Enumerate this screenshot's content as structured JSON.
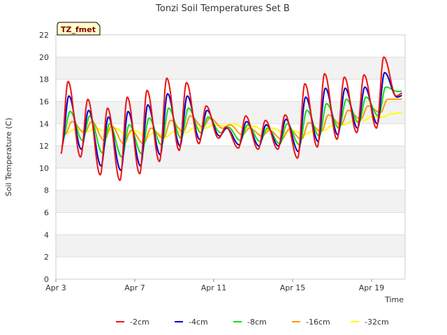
{
  "chart_data": {
    "type": "line",
    "title": "Tonzi Soil Temperatures Set B",
    "xlabel": "Time",
    "ylabel": "Soil Temperature (C)",
    "ylim": [
      0,
      22
    ],
    "xlim": [
      3,
      20.7
    ],
    "y_ticks": [
      0,
      2,
      4,
      6,
      8,
      10,
      12,
      14,
      16,
      18,
      20,
      22
    ],
    "x_ticks": [
      {
        "value": 3,
        "label": "Apr 3"
      },
      {
        "value": 7,
        "label": "Apr 7"
      },
      {
        "value": 11,
        "label": "Apr 11"
      },
      {
        "value": 15,
        "label": "Apr 15"
      },
      {
        "value": 19,
        "label": "Apr 19"
      }
    ],
    "x_unit": "day of April",
    "badge": "TZ_fmet",
    "grid": true,
    "band_color": "#f2f2f2",
    "legend_position": "bottom",
    "series": [
      {
        "name": "-2cm",
        "color": "#ee1111",
        "daily": [
          {
            "day": 3,
            "min": 11.3,
            "max": 17.8
          },
          {
            "day": 4,
            "min": 11.0,
            "max": 16.2
          },
          {
            "day": 5,
            "min": 9.4,
            "max": 15.4
          },
          {
            "day": 6,
            "min": 8.9,
            "max": 16.4
          },
          {
            "day": 7,
            "min": 9.5,
            "max": 17.0
          },
          {
            "day": 8,
            "min": 10.6,
            "max": 18.1
          },
          {
            "day": 9,
            "min": 11.6,
            "max": 17.7
          },
          {
            "day": 10,
            "min": 12.2,
            "max": 15.6
          },
          {
            "day": 11,
            "min": 12.7,
            "max": 13.7
          },
          {
            "day": 12,
            "min": 11.8,
            "max": 14.7
          },
          {
            "day": 13,
            "min": 11.7,
            "max": 14.3
          },
          {
            "day": 14,
            "min": 11.7,
            "max": 14.8
          },
          {
            "day": 15,
            "min": 10.9,
            "max": 17.6
          },
          {
            "day": 16,
            "min": 11.9,
            "max": 18.5
          },
          {
            "day": 17,
            "min": 12.6,
            "max": 18.2
          },
          {
            "day": 18,
            "min": 13.2,
            "max": 18.4
          },
          {
            "day": 19,
            "min": 13.6,
            "max": 20.0
          },
          {
            "day": 20,
            "min": 16.5,
            "max": 16.8
          }
        ]
      },
      {
        "name": "-4cm",
        "color": "#0000cc",
        "daily": [
          {
            "day": 3,
            "min": 11.9,
            "max": 16.5
          },
          {
            "day": 4,
            "min": 11.7,
            "max": 15.2
          },
          {
            "day": 5,
            "min": 10.2,
            "max": 14.6
          },
          {
            "day": 6,
            "min": 9.8,
            "max": 15.1
          },
          {
            "day": 7,
            "min": 10.2,
            "max": 15.7
          },
          {
            "day": 8,
            "min": 11.2,
            "max": 16.7
          },
          {
            "day": 9,
            "min": 12.0,
            "max": 16.5
          },
          {
            "day": 10,
            "min": 12.6,
            "max": 15.2
          },
          {
            "day": 11,
            "min": 12.9,
            "max": 13.6
          },
          {
            "day": 12,
            "min": 12.1,
            "max": 14.2
          },
          {
            "day": 13,
            "min": 12.0,
            "max": 13.9
          },
          {
            "day": 14,
            "min": 12.0,
            "max": 14.4
          },
          {
            "day": 15,
            "min": 11.5,
            "max": 16.4
          },
          {
            "day": 16,
            "min": 12.4,
            "max": 17.2
          },
          {
            "day": 17,
            "min": 13.0,
            "max": 17.2
          },
          {
            "day": 18,
            "min": 13.6,
            "max": 17.3
          },
          {
            "day": 19,
            "min": 14.0,
            "max": 18.6
          },
          {
            "day": 20,
            "min": 16.4,
            "max": 16.6
          }
        ]
      },
      {
        "name": "-8cm",
        "color": "#11dd11",
        "daily": [
          {
            "day": 3,
            "min": 12.6,
            "max": 15.1
          },
          {
            "day": 4,
            "min": 12.5,
            "max": 14.7
          },
          {
            "day": 5,
            "min": 11.4,
            "max": 14.0
          },
          {
            "day": 6,
            "min": 11.0,
            "max": 13.9
          },
          {
            "day": 7,
            "min": 11.3,
            "max": 14.5
          },
          {
            "day": 8,
            "min": 12.1,
            "max": 15.4
          },
          {
            "day": 9,
            "min": 12.7,
            "max": 15.4
          },
          {
            "day": 10,
            "min": 13.2,
            "max": 14.6
          },
          {
            "day": 11,
            "min": 13.2,
            "max": 13.7
          },
          {
            "day": 12,
            "min": 12.5,
            "max": 13.9
          },
          {
            "day": 13,
            "min": 12.4,
            "max": 13.6
          },
          {
            "day": 14,
            "min": 12.2,
            "max": 14.0
          },
          {
            "day": 15,
            "min": 12.1,
            "max": 15.2
          },
          {
            "day": 16,
            "min": 12.9,
            "max": 15.8
          },
          {
            "day": 17,
            "min": 13.6,
            "max": 16.2
          },
          {
            "day": 18,
            "min": 14.1,
            "max": 16.4
          },
          {
            "day": 19,
            "min": 14.7,
            "max": 17.3
          },
          {
            "day": 20,
            "min": 16.9,
            "max": 17.0
          }
        ]
      },
      {
        "name": "-16cm",
        "color": "#ff9900",
        "daily": [
          {
            "day": 3,
            "min": 13.0,
            "max": 14.2
          },
          {
            "day": 4,
            "min": 13.2,
            "max": 14.2
          },
          {
            "day": 5,
            "min": 12.5,
            "max": 13.8
          },
          {
            "day": 6,
            "min": 12.2,
            "max": 13.4
          },
          {
            "day": 7,
            "min": 12.2,
            "max": 13.6
          },
          {
            "day": 8,
            "min": 12.7,
            "max": 14.3
          },
          {
            "day": 9,
            "min": 13.3,
            "max": 14.7
          },
          {
            "day": 10,
            "min": 13.7,
            "max": 14.5
          },
          {
            "day": 11,
            "min": 13.6,
            "max": 13.9
          },
          {
            "day": 12,
            "min": 13.0,
            "max": 13.6
          },
          {
            "day": 13,
            "min": 12.9,
            "max": 13.4
          },
          {
            "day": 14,
            "min": 12.6,
            "max": 13.5
          },
          {
            "day": 15,
            "min": 12.6,
            "max": 14.1
          },
          {
            "day": 16,
            "min": 13.3,
            "max": 14.8
          },
          {
            "day": 17,
            "min": 13.9,
            "max": 15.2
          },
          {
            "day": 18,
            "min": 14.4,
            "max": 15.6
          },
          {
            "day": 19,
            "min": 15.0,
            "max": 16.2
          },
          {
            "day": 20,
            "min": 16.2,
            "max": 16.3
          }
        ]
      },
      {
        "name": "-32cm",
        "color": "#ffff00",
        "daily": [
          {
            "day": 3,
            "min": 13.2,
            "max": 13.5
          },
          {
            "day": 4,
            "min": 13.3,
            "max": 13.6
          },
          {
            "day": 5,
            "min": 13.3,
            "max": 13.6
          },
          {
            "day": 6,
            "min": 13.0,
            "max": 13.4
          },
          {
            "day": 7,
            "min": 12.8,
            "max": 13.2
          },
          {
            "day": 8,
            "min": 12.8,
            "max": 13.3
          },
          {
            "day": 9,
            "min": 13.2,
            "max": 13.6
          },
          {
            "day": 10,
            "min": 13.6,
            "max": 13.9
          },
          {
            "day": 11,
            "min": 13.8,
            "max": 14.0
          },
          {
            "day": 12,
            "min": 13.6,
            "max": 13.8
          },
          {
            "day": 13,
            "min": 13.4,
            "max": 13.6
          },
          {
            "day": 14,
            "min": 13.2,
            "max": 13.4
          },
          {
            "day": 15,
            "min": 13.0,
            "max": 13.3
          },
          {
            "day": 16,
            "min": 13.4,
            "max": 13.8
          },
          {
            "day": 17,
            "min": 13.9,
            "max": 14.2
          },
          {
            "day": 18,
            "min": 14.3,
            "max": 14.6
          },
          {
            "day": 19,
            "min": 14.6,
            "max": 14.9
          },
          {
            "day": 20,
            "min": 15.0,
            "max": 15.2
          }
        ]
      }
    ]
  }
}
